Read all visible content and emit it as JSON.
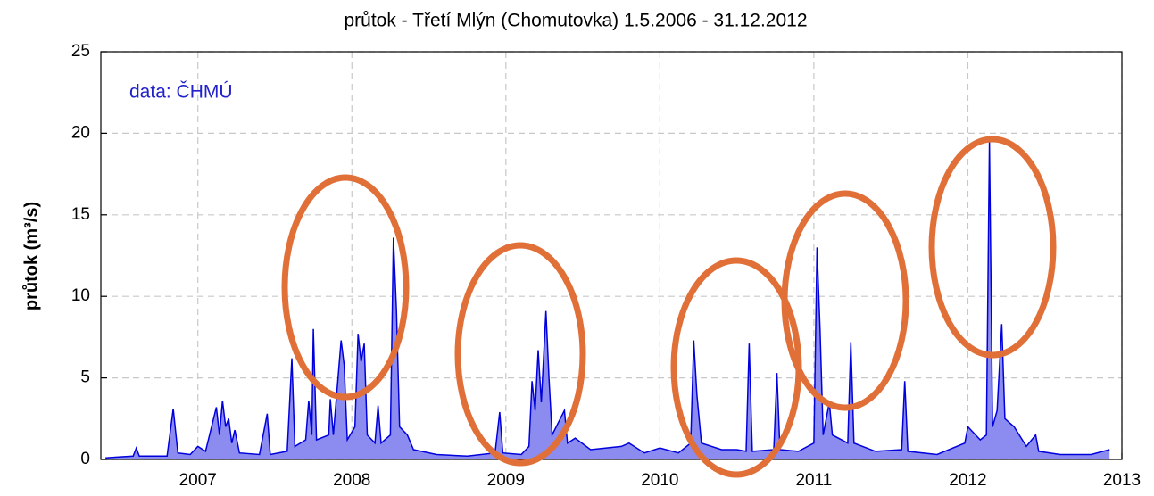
{
  "chart_data": {
    "type": "area",
    "title": "průtok - Třetí Mlýn (Chomutovka) 1.5.2006 - 31.12.2012",
    "y_label": "průtok (m³/s)",
    "annotation": "data: ČHMÚ",
    "xlim": [
      2006.37,
      2013
    ],
    "xticks": [
      2007,
      2008,
      2009,
      2010,
      2011,
      2012,
      2013
    ],
    "ylim": [
      0,
      25
    ],
    "yticks": [
      0,
      5,
      10,
      15,
      20,
      25
    ],
    "grid": true,
    "x": [
      2006.4,
      2006.58,
      2006.6,
      2006.62,
      2006.8,
      2006.84,
      2006.87,
      2006.95,
      2007.0,
      2007.05,
      2007.12,
      2007.14,
      2007.16,
      2007.18,
      2007.2,
      2007.22,
      2007.24,
      2007.27,
      2007.4,
      2007.45,
      2007.47,
      2007.58,
      2007.61,
      2007.63,
      2007.7,
      2007.72,
      2007.74,
      2007.75,
      2007.77,
      2007.85,
      2007.86,
      2007.88,
      2007.93,
      2007.95,
      2007.97,
      2008.02,
      2008.04,
      2008.06,
      2008.08,
      2008.1,
      2008.15,
      2008.17,
      2008.19,
      2008.25,
      2008.27,
      2008.29,
      2008.31,
      2008.36,
      2008.4,
      2008.55,
      2008.75,
      2008.93,
      2008.96,
      2008.98,
      2009.1,
      2009.15,
      2009.17,
      2009.19,
      2009.21,
      2009.23,
      2009.26,
      2009.28,
      2009.3,
      2009.38,
      2009.4,
      2009.45,
      2009.55,
      2009.75,
      2009.8,
      2009.9,
      2010.0,
      2010.12,
      2010.2,
      2010.22,
      2010.24,
      2010.27,
      2010.4,
      2010.5,
      2010.56,
      2010.58,
      2010.6,
      2010.74,
      2010.76,
      2010.78,
      2010.9,
      2011.0,
      2011.02,
      2011.04,
      2011.06,
      2011.1,
      2011.12,
      2011.22,
      2011.24,
      2011.26,
      2011.4,
      2011.57,
      2011.59,
      2011.61,
      2011.8,
      2011.98,
      2012.0,
      2012.08,
      2012.12,
      2012.14,
      2012.16,
      2012.19,
      2012.22,
      2012.24,
      2012.3,
      2012.38,
      2012.44,
      2012.46,
      2012.6,
      2012.8,
      2012.92
    ],
    "series": [
      {
        "color": "#0000dd",
        "fill": "#8c8cf0",
        "values": [
          0.1,
          0.2,
          0.7,
          0.2,
          0.2,
          3.1,
          0.4,
          0.3,
          0.8,
          0.5,
          3.2,
          1.5,
          3.6,
          2.0,
          2.5,
          1.0,
          1.8,
          0.4,
          0.3,
          2.8,
          0.3,
          0.5,
          6.2,
          0.8,
          1.2,
          3.6,
          1.5,
          8.0,
          1.2,
          1.5,
          3.7,
          1.5,
          7.3,
          5.8,
          1.2,
          2.0,
          7.7,
          6.0,
          7.1,
          1.5,
          1.0,
          3.3,
          1.0,
          1.5,
          13.6,
          9.0,
          2.0,
          1.5,
          0.6,
          0.3,
          0.2,
          0.4,
          2.9,
          0.4,
          0.3,
          0.8,
          4.8,
          3.0,
          6.7,
          3.5,
          9.1,
          5.0,
          1.5,
          3.0,
          1.0,
          1.3,
          0.6,
          0.8,
          1.0,
          0.4,
          0.7,
          0.4,
          1.0,
          7.3,
          4.0,
          1.0,
          0.6,
          0.6,
          0.5,
          7.1,
          0.5,
          0.6,
          5.3,
          0.6,
          0.5,
          1.0,
          13.0,
          8.0,
          1.5,
          3.5,
          1.5,
          1.0,
          7.2,
          1.0,
          0.5,
          0.6,
          4.8,
          0.5,
          0.3,
          1.0,
          2.0,
          1.2,
          1.5,
          19.5,
          2.0,
          3.0,
          8.3,
          2.5,
          2.0,
          0.8,
          1.5,
          0.5,
          0.3,
          0.3,
          0.6
        ]
      }
    ]
  }
}
